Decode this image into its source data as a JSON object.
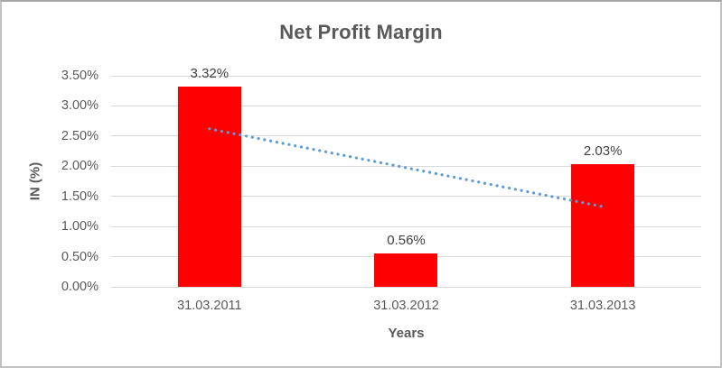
{
  "frame": {
    "background": "#ffffff",
    "border_color": "#c2c2c2"
  },
  "chart_data": {
    "type": "bar",
    "title": "Net Profit Margin",
    "xlabel": "Years",
    "ylabel": "IN (%)",
    "categories": [
      "31.03.2011",
      "31.03.2012",
      "31.03.2013"
    ],
    "values": [
      3.32,
      0.56,
      2.03
    ],
    "data_labels": [
      "3.32%",
      "0.56%",
      "2.03%"
    ],
    "ylim": [
      0,
      3.5
    ],
    "ytick_step": 0.5,
    "ytick_labels": [
      "0.00%",
      "0.50%",
      "1.00%",
      "1.50%",
      "2.00%",
      "2.50%",
      "3.00%",
      "3.50%"
    ],
    "grid": true,
    "legend": "none",
    "bar_color": "#ff0000",
    "gridline_color": "#d9d9d9",
    "title_color": "#595959",
    "tick_color": "#595959",
    "data_label_color": "#404040",
    "trendline": {
      "type": "linear",
      "style": "dotted",
      "color": "#5b9bd5",
      "start_value": 2.62,
      "end_value": 1.33
    }
  }
}
